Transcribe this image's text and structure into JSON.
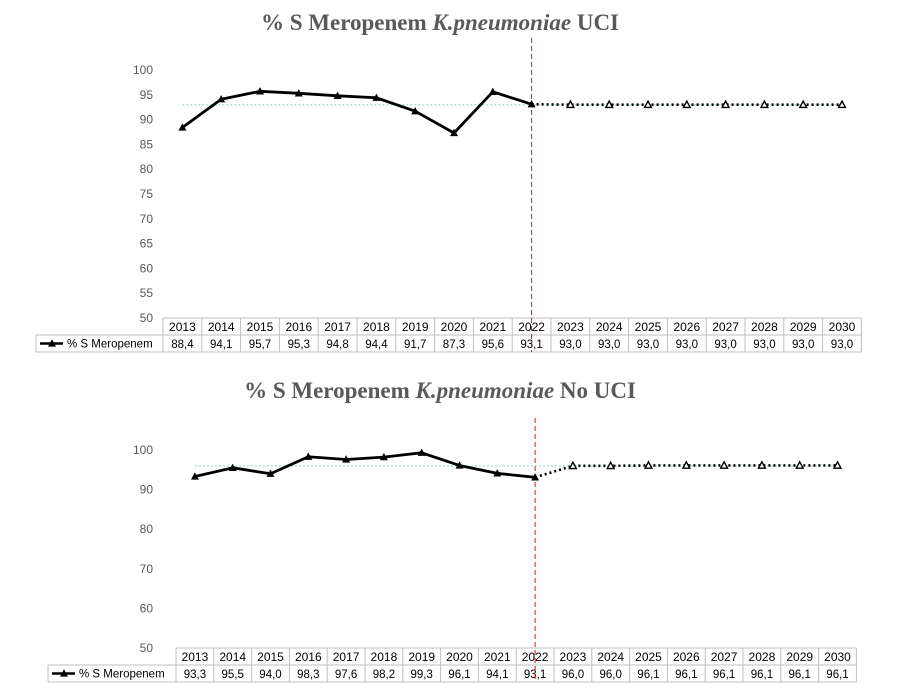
{
  "chart_data": [
    {
      "type": "line",
      "title": {
        "prefix": "% S Meropenem ",
        "organism": "K.pneumoniae",
        "suffix": " UCI"
      },
      "categories": [
        "2013",
        "2014",
        "2015",
        "2016",
        "2017",
        "2018",
        "2019",
        "2020",
        "2021",
        "2022",
        "2023",
        "2024",
        "2025",
        "2026",
        "2027",
        "2028",
        "2029",
        "2030"
      ],
      "series": [
        {
          "name": "%  S Meropenem",
          "values": [
            88.4,
            94.1,
            95.7,
            95.3,
            94.8,
            94.4,
            91.7,
            87.3,
            95.6,
            93.1,
            93.0,
            93.0,
            93.0,
            93.0,
            93.0,
            93.0,
            93.0,
            93.0
          ],
          "labels": [
            "88,4",
            "94,1",
            "95,7",
            "95,3",
            "94,8",
            "94,4",
            "91,7",
            "87,3",
            "95,6",
            "93,1",
            "93,0",
            "93,0",
            "93,0",
            "93,0",
            "93,0",
            "93,0",
            "93,0",
            "93,0"
          ]
        }
      ],
      "observed_until": "2022",
      "reference_line": 93.0,
      "ylim": [
        50,
        100
      ],
      "yticks": [
        50,
        55,
        60,
        65,
        70,
        75,
        80,
        85,
        90,
        95,
        100
      ],
      "legend": "data-table",
      "grid": false,
      "colors": {
        "line": "#000000",
        "reference": "#a9d8c8",
        "divider": "#ff0000"
      }
    },
    {
      "type": "line",
      "title": {
        "prefix": "% S Meropenem ",
        "organism": "K.pneumoniae",
        "suffix": " No UCI"
      },
      "categories": [
        "2013",
        "2014",
        "2015",
        "2016",
        "2017",
        "2018",
        "2019",
        "2020",
        "2021",
        "2022",
        "2023",
        "2024",
        "2025",
        "2026",
        "2027",
        "2028",
        "2029",
        "2030"
      ],
      "series": [
        {
          "name": "%  S Meropenem",
          "values": [
            93.3,
            95.5,
            94.0,
            98.3,
            97.6,
            98.2,
            99.3,
            96.1,
            94.1,
            93.1,
            96.0,
            96.0,
            96.1,
            96.1,
            96.1,
            96.1,
            96.1,
            96.1
          ],
          "labels": [
            "93,3",
            "95,5",
            "94,0",
            "98,3",
            "97,6",
            "98,2",
            "99,3",
            "96,1",
            "94,1",
            "93,1",
            "96,0",
            "96,0",
            "96,1",
            "96,1",
            "96,1",
            "96,1",
            "96,1",
            "96,1"
          ]
        }
      ],
      "observed_until": "2022",
      "reference_line": 96.0,
      "ylim": [
        50,
        100
      ],
      "yticks": [
        50,
        60,
        70,
        80,
        90,
        100
      ],
      "legend": "data-table",
      "grid": false,
      "colors": {
        "line": "#000000",
        "reference": "#a9d8c8",
        "divider": "#ff0000"
      }
    }
  ]
}
